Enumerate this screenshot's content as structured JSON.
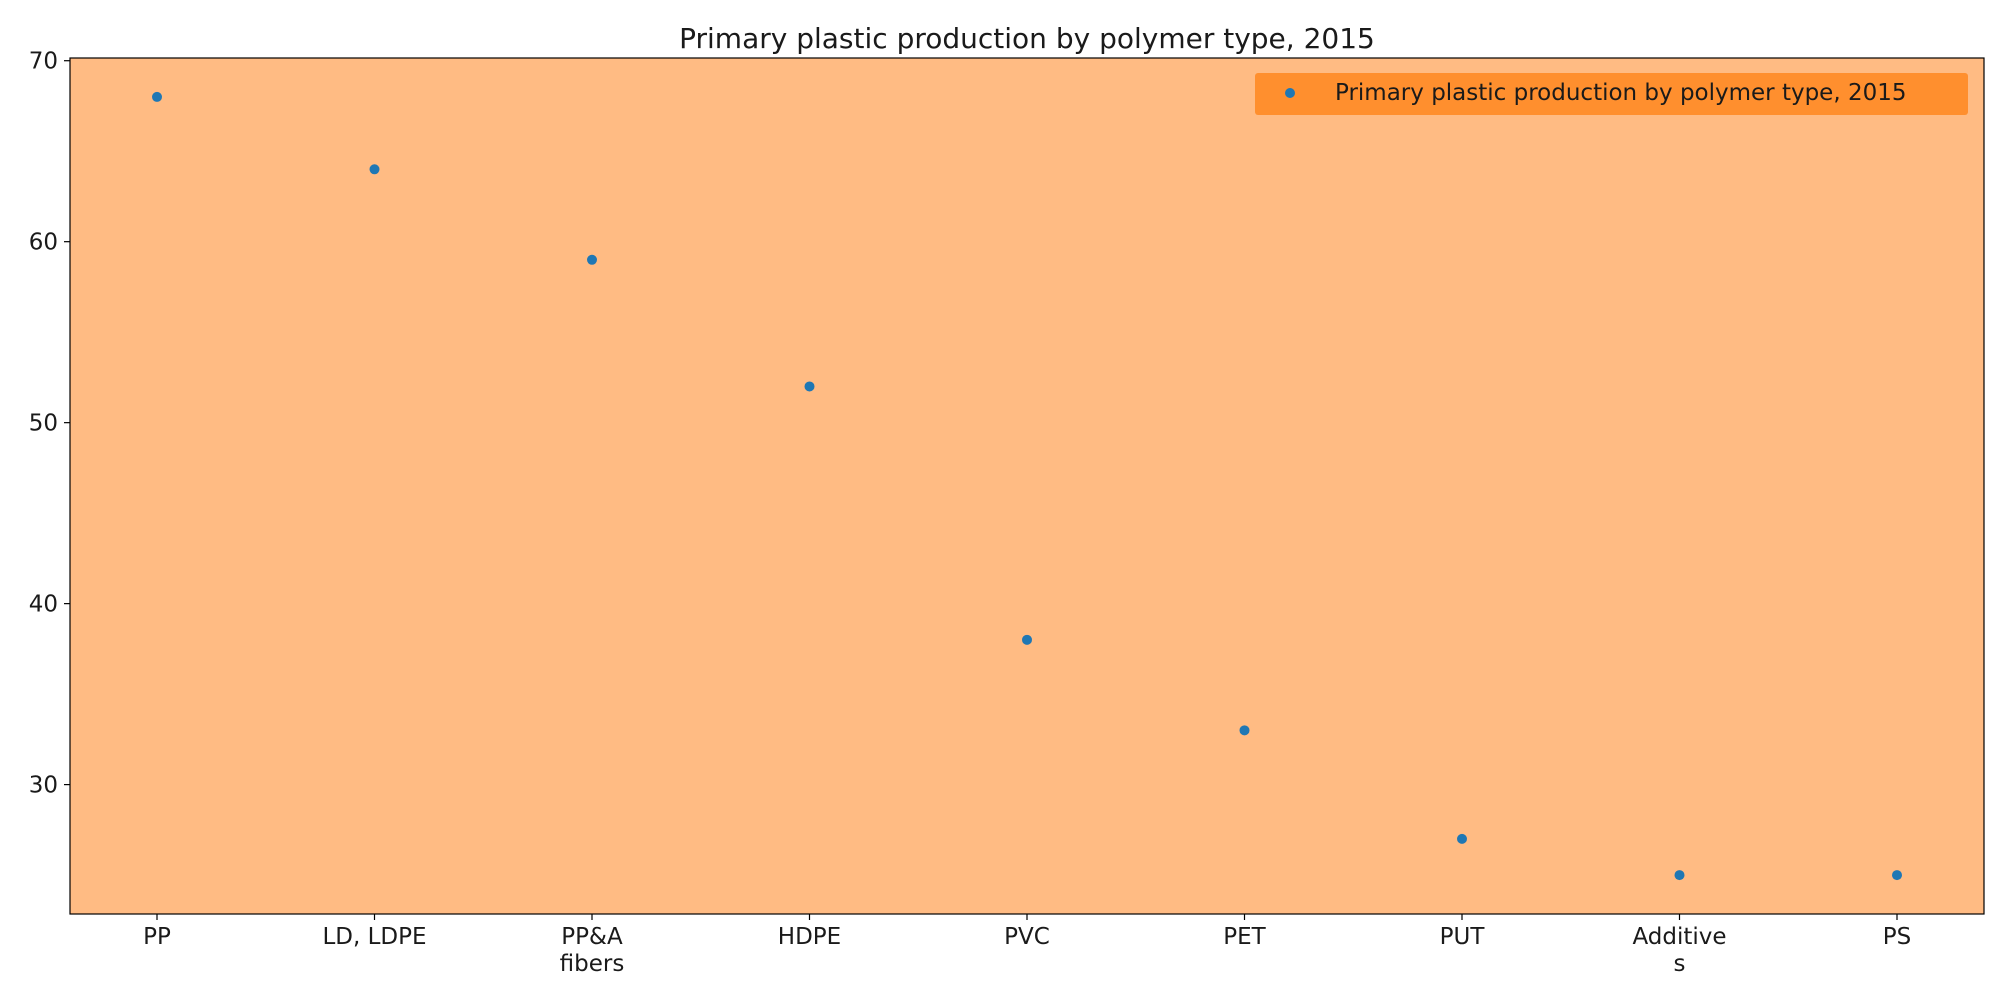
{
  "chart_data": {
    "type": "scatter",
    "title": "Primary plastic production by polymer type, 2015",
    "xlabel": "",
    "ylabel": "",
    "categories": [
      "PP",
      "LD, LDPE",
      "PP&A fibers",
      "HDPE",
      "PVC",
      "PET",
      "PUT",
      "Additives",
      "PS"
    ],
    "category_display": [
      [
        "PP"
      ],
      [
        "LD, LDPE"
      ],
      [
        "PP&A",
        "fibers"
      ],
      [
        "HDPE"
      ],
      [
        "PVC"
      ],
      [
        "PET"
      ],
      [
        "PUT"
      ],
      [
        "Additive",
        "s"
      ],
      [
        "PS"
      ]
    ],
    "series": [
      {
        "name": "Primary plastic production by polymer type, 2015",
        "values": [
          68,
          64,
          59,
          52,
          38,
          33,
          27,
          25,
          25
        ]
      }
    ],
    "ylim": [
      22.85,
      70.15
    ],
    "yticks": [
      30,
      40,
      50,
      60,
      70
    ],
    "grid": false,
    "legend_position": "top-right",
    "colors": {
      "plot_background": "#ffbb83",
      "legend_background": "#ff8f2e",
      "marker": "#1f77b4",
      "axis": "#000000"
    }
  }
}
